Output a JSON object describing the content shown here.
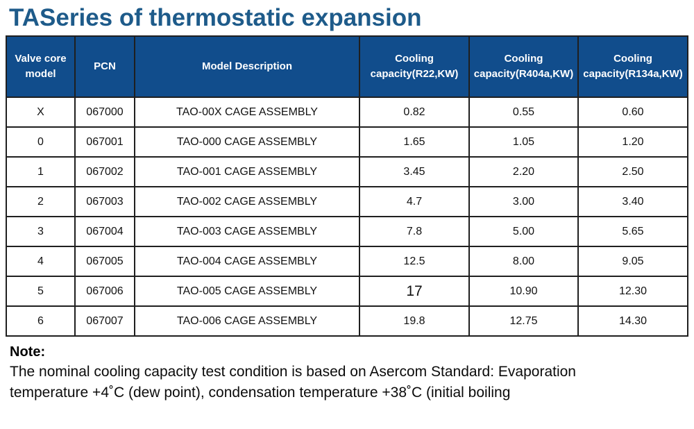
{
  "title": "TASeries of thermostatic expansion",
  "colors": {
    "title_text": "#1e5b8a",
    "header_bg": "#114d8c",
    "header_text": "#ffffff",
    "border": "#1f1f1f"
  },
  "table": {
    "columns": [
      {
        "label": "Valve core model"
      },
      {
        "label": "PCN"
      },
      {
        "label": "Model Description"
      },
      {
        "label": "Cooling capacity(R22,KW)"
      },
      {
        "label": "Cooling capacity(R404a,KW)"
      },
      {
        "label": "Cooling capacity(R134a,KW)"
      }
    ],
    "rows": [
      [
        "X",
        "067000",
        "TAO-00X CAGE ASSEMBLY",
        "0.82",
        "0.55",
        "0.60"
      ],
      [
        "0",
        "067001",
        "TAO-000 CAGE ASSEMBLY",
        "1.65",
        "1.05",
        "1.20"
      ],
      [
        "1",
        "067002",
        "TAO-001 CAGE ASSEMBLY",
        "3.45",
        "2.20",
        "2.50"
      ],
      [
        "2",
        "067003",
        "TAO-002 CAGE ASSEMBLY",
        "4.7",
        "3.00",
        "3.40"
      ],
      [
        "3",
        "067004",
        "TAO-003 CAGE ASSEMBLY",
        "7.8",
        "5.00",
        "5.65"
      ],
      [
        "4",
        "067005",
        "TAO-004 CAGE ASSEMBLY",
        "12.5",
        "8.00",
        "9.05"
      ],
      [
        "5",
        "067006",
        "TAO-005 CAGE ASSEMBLY",
        "17",
        "10.90",
        "12.30"
      ],
      [
        "6",
        "067007",
        "TAO-006 CAGE ASSEMBLY",
        "19.8",
        "12.75",
        "14.30"
      ]
    ]
  },
  "note": {
    "heading": "Note:",
    "lines": [
      "The nominal cooling capacity test condition is based on Asercom Standard: Evaporation",
      "temperature +4˚C (dew point), condensation temperature +38˚C (initial boiling"
    ]
  }
}
